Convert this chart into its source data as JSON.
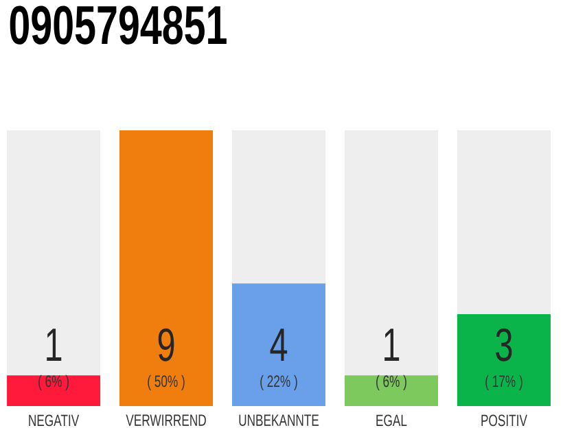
{
  "chart_data": {
    "type": "bar",
    "title": "0905794851",
    "categories": [
      "NEGATIV",
      "VERWIRREND",
      "UNBEKANNTE",
      "EGAL",
      "POSITIV"
    ],
    "values": [
      1,
      9,
      4,
      1,
      3
    ],
    "colors": [
      "#ff1a3c",
      "#f07e0e",
      "#6aa0ea",
      "#7dc95e",
      "#0bb44b"
    ],
    "data_labels": true,
    "annotations": [
      "( 6% )",
      "( 50% )",
      "( 22% )",
      "( 6% )",
      "( 17% )"
    ]
  }
}
